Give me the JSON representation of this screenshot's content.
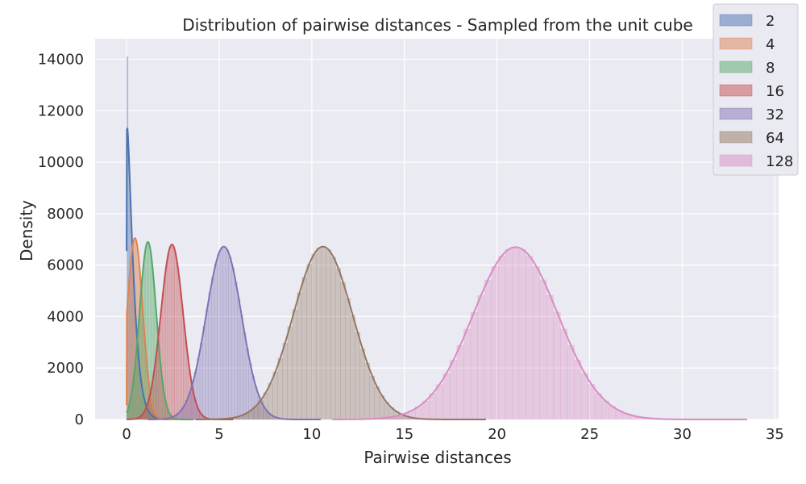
{
  "chart_data": {
    "type": "histogram",
    "title": "Distribution of pairwise distances - Sampled from the unit cube",
    "xlabel": "Pairwise distances",
    "ylabel": "Density",
    "xlim": [
      -1.7,
      35.2
    ],
    "ylim": [
      0,
      14800
    ],
    "xticks": [
      0,
      5,
      10,
      15,
      20,
      25,
      30,
      35
    ],
    "yticks": [
      0,
      2000,
      4000,
      6000,
      8000,
      10000,
      12000,
      14000
    ],
    "grid": true,
    "legend_position": "top-right",
    "background": "#eaeaf2",
    "series": [
      {
        "name": "2",
        "color": "#4c72b0",
        "kde_peak_x": 0.05,
        "kde_peak_y": 11300,
        "kde_end_y": 6550,
        "spread": 0.45,
        "max_bar": 14100
      },
      {
        "name": "4",
        "color": "#dd8452",
        "kde_peak_x": 0.45,
        "kde_peak_y": 7050,
        "kde_start_y": 550,
        "spread": 0.42
      },
      {
        "name": "8",
        "color": "#55a868",
        "kde_peak_x": 1.15,
        "kde_peak_y": 6900,
        "spread": 0.45
      },
      {
        "name": "16",
        "color": "#c44e52",
        "kde_peak_x": 2.45,
        "kde_peak_y": 6800,
        "spread": 0.6
      },
      {
        "name": "32",
        "color": "#8172b3",
        "kde_peak_x": 5.25,
        "kde_peak_y": 6720,
        "spread": 0.95
      },
      {
        "name": "64",
        "color": "#937860",
        "kde_peak_x": 10.6,
        "kde_peak_y": 6720,
        "spread": 1.6
      },
      {
        "name": "128",
        "color": "#da8bc3",
        "kde_peak_x": 21.0,
        "kde_peak_y": 6700,
        "spread": 2.3
      }
    ]
  }
}
